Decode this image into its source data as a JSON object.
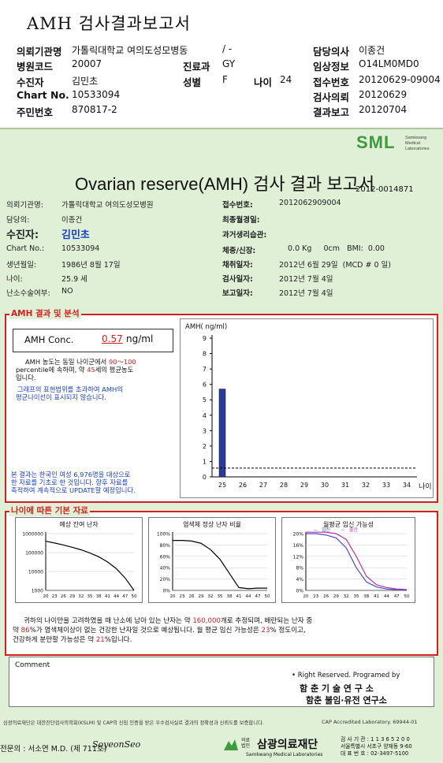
{
  "header": {
    "title": "AMH 검사결과보고서",
    "rows": [
      {
        "l1": "의뢰기관명",
        "v1": "가톨릭대학교 여의도성모병동",
        "l2": "",
        "v2": "/ -",
        "l3": "담당의사",
        "v3": "이종건"
      },
      {
        "l1": "병원코드",
        "v1": "20007",
        "l2": "진료과",
        "v2": "GY",
        "l3": "임상정보",
        "v3": "O14LM0MD0"
      },
      {
        "l1": "수진자",
        "v1": "김민초",
        "l2": "성별",
        "v2": "F",
        "l2b": "나이",
        "v2b": "24",
        "l3": "접수번호",
        "v3": "20120629-09004"
      },
      {
        "l1": "Chart No.",
        "v1": "10533094",
        "l2": "",
        "v2": "",
        "l3": "검사의뢰",
        "v3": "20120629"
      },
      {
        "l1": "주민번호",
        "v1": "870817-2",
        "l2": "",
        "v2": "",
        "l3": "결과보고",
        "v3": "20120704"
      }
    ]
  },
  "report": {
    "logo": "SML",
    "logo_sub": [
      "Samkwang",
      "Medical",
      "Laboratories"
    ],
    "title": "Ovarian reserve(AMH) 검사 결과 보고서",
    "doc_no": "2012-0014871",
    "left_info": [
      {
        "label": "의뢰기관명:",
        "value": "가톨릭대학교 여의도성모병원"
      },
      {
        "label": "담당의:",
        "value": "이종건"
      },
      {
        "label": "수진자:",
        "value": "김민초"
      },
      {
        "label": "Chart No.:",
        "value": "10533094"
      },
      {
        "label": "생년월일:",
        "value": "1986년 8월 17일"
      },
      {
        "label": "나이:",
        "value": "25.9 세"
      },
      {
        "label": "난소수술여부:",
        "value": "NO"
      }
    ],
    "right_info": [
      {
        "label": "접수번호:",
        "value": "2012062909004"
      },
      {
        "label": "최종월경일:",
        "value": ""
      },
      {
        "label": "과거생리습관:",
        "value": ""
      },
      {
        "label": "체중/신장:",
        "value": "0.0 Kg     0cm   BMI:  0.00"
      },
      {
        "label": "채취일자:",
        "value": "2012년 6월 29일  (MCD # 0 일)"
      },
      {
        "label": "검사일자:",
        "value": "2012년 7월 4일"
      },
      {
        "label": "보고일자:",
        "value": "2012년 7월 4일"
      }
    ],
    "amh_section_title": "AMH 결과 및 분석",
    "amh_conc_label": "AMH Conc.",
    "amh_conc_value": "0.57",
    "amh_conc_unit": "ng/ml",
    "pct_text_1": "AMH 농도는 동일 나이군에서",
    "pct_range": "90～100",
    "pct_text_2": "percentile에 속하며, 약",
    "pct_age": "45",
    "pct_text_3": "세의 평균농도",
    "pct_text_4": "입니다.",
    "graph_note_1": "그래프의 표현범위를 초과하여 AMH의",
    "graph_note_2": "평균나이선이 표시되지 않습니다.",
    "base_note_1": "본 결과는 한국인 여성 6,976명을 대상으로",
    "base_note_2": "한 자료를 기초로 한 것입니다. 향후 자료를",
    "base_note_3": "축적하여 계속적으로 UPDATE할 예정입니다.",
    "age_section_title": "나이에 따른 기본 자료",
    "bottom_text_1a": "귀하의 나이만을 고려하였을 때 난소에 남아 있는 난자는 약",
    "bottom_eggs": "160,000",
    "bottom_text_1b": "개로 추정되며, 배란되는 난자 중",
    "bottom_text_2a": "약",
    "bottom_normal": "86",
    "bottom_text_2b": "%가 염색체이상이 없는 건강한 난자일 것으로 예상됩니다. 월 평균 임신 가능성은",
    "bottom_preg": "23",
    "bottom_text_2c": "% 정도이고,",
    "bottom_text_3a": "건강하게 분만할 가능성은 약",
    "bottom_birth": "21",
    "bottom_text_3b": "%입니다.",
    "comment_label": "Comment",
    "rights": "• Right Reserved. Programed by",
    "lab_1": "함 춘   기 술   연 구 소",
    "lab_2": "함춘 불임·유전 연구소",
    "footer_left": "삼광의료재단은 대한진단검사의학회(KSLM) 및 CAP의 신임 인증을 받은 우수검사실로 결과의 정확성과 신뢰도를 보증합니다.",
    "footer_right": "CAP Accredited Laboratory. 69944-01",
    "sign_label": "전문의 : 서소연 M.D. (제 711호)",
    "sign_script": "SoyeonSeo",
    "foundation_prefix": "의료법인",
    "foundation": "삼광의료재단",
    "foundation_en": "Samkwang Medical Laboratories",
    "contact_1": "검 사 기 관 : 1 1 3 6 5 2 0 0",
    "contact_2": "서울특별시 서초구 양재동 9-60",
    "contact_3": "대 표 번 호 : 02-3497-5100"
  },
  "chart_data": [
    {
      "type": "bar",
      "title": "",
      "ylabel": "AMH( ng/ml)",
      "xlabel": "나이",
      "categories": [
        "25",
        "26",
        "27",
        "28",
        "29",
        "30",
        "31",
        "32",
        "33",
        "34"
      ],
      "values": [
        5.7,
        null,
        null,
        null,
        null,
        null,
        null,
        null,
        null,
        null
      ],
      "reference_line": 0.57,
      "ylim": [
        0,
        9
      ],
      "yticks": [
        "0",
        "1",
        "2",
        "3",
        "4",
        "5",
        "6",
        "7",
        "8",
        "9"
      ]
    },
    {
      "type": "line",
      "title": "예상 잔여 난자",
      "scale": "log",
      "yticks": [
        "1000000",
        "100000",
        "10000",
        "1000"
      ],
      "xticks": [
        "20",
        "23",
        "26",
        "29",
        "32",
        "35",
        "38",
        "41",
        "44",
        "47",
        "50"
      ],
      "x": [
        20,
        23,
        26,
        29,
        32,
        35,
        38,
        41,
        44,
        47,
        50
      ],
      "y": [
        400000,
        320000,
        250000,
        190000,
        140000,
        95000,
        60000,
        32000,
        14000,
        4500,
        1000
      ]
    },
    {
      "type": "line",
      "title": "염색체 정상 난자 비율",
      "yticks": [
        "100%",
        "80%",
        "60%",
        "40%",
        "20%",
        "0%"
      ],
      "xticks": [
        "20",
        "23",
        "26",
        "29",
        "32",
        "35",
        "38",
        "41",
        "44",
        "47",
        "50"
      ],
      "x": [
        20,
        23,
        26,
        29,
        32,
        35,
        38,
        41,
        44,
        47,
        50
      ],
      "y": [
        88,
        88,
        87,
        83,
        72,
        55,
        30,
        5,
        3,
        4,
        4
      ]
    },
    {
      "type": "line",
      "title": "월평균 임신 가능성",
      "legend": [
        "임신",
        "출산"
      ],
      "yticks": [
        "20%",
        "16%",
        "12%",
        "8%",
        "4%",
        "0%"
      ],
      "xticks": [
        "20",
        "23",
        "26",
        "29",
        "32",
        "35",
        "38",
        "41",
        "44",
        "47",
        "50"
      ],
      "x": [
        20,
        23,
        26,
        29,
        32,
        35,
        38,
        41,
        44,
        47,
        50
      ],
      "series": [
        {
          "name": "임신",
          "values": [
            20.5,
            20.5,
            20.5,
            20,
            18,
            12,
            5,
            2,
            1,
            0.5,
            0.3
          ]
        },
        {
          "name": "출산",
          "values": [
            20,
            20,
            19.5,
            18.5,
            15,
            8,
            3,
            1.2,
            0.5,
            0.2,
            0.1
          ]
        }
      ]
    }
  ]
}
